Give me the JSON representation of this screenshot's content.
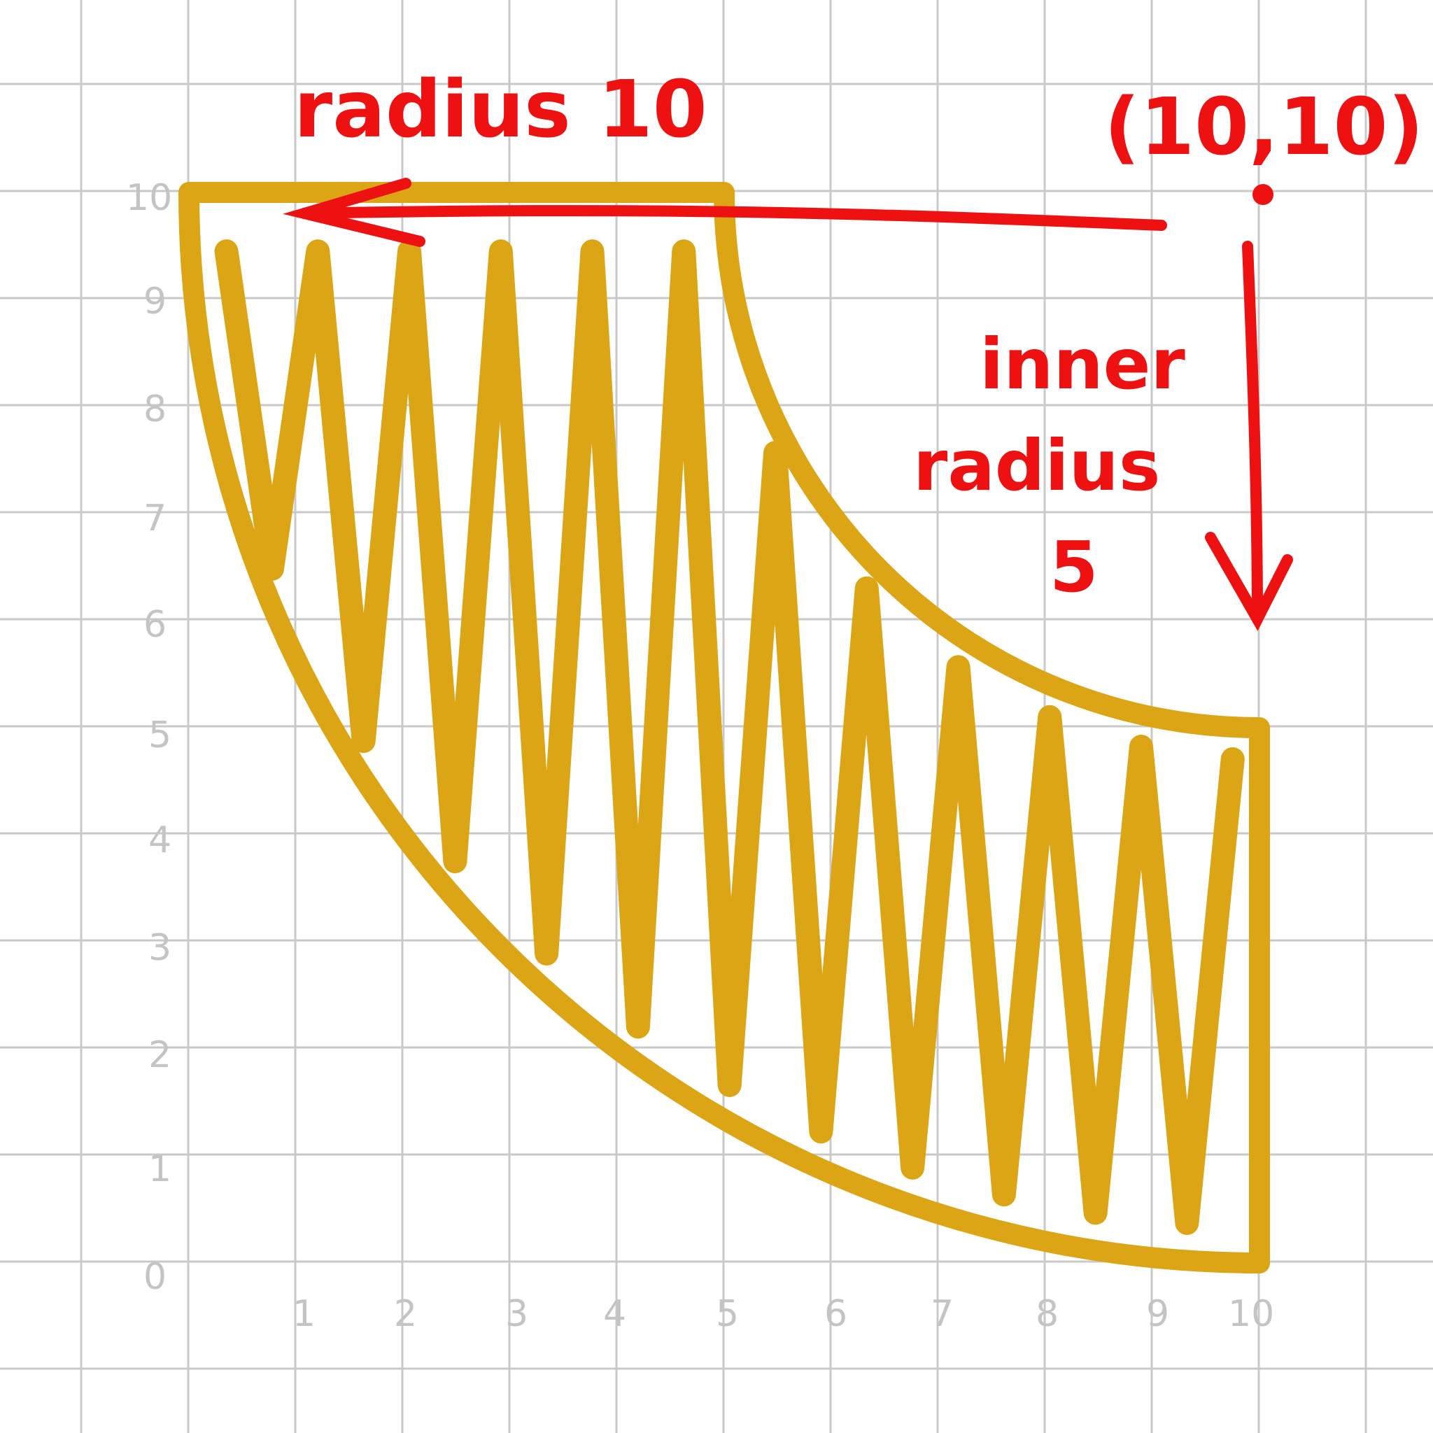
{
  "colors": {
    "grid": "#c9c9c9",
    "axis_numbers": "#c4c4c4",
    "fill": "#dba515",
    "annotation": "#ee1111"
  },
  "axes": {
    "x_ticks": [
      "1",
      "2",
      "3",
      "4",
      "5",
      "6",
      "7",
      "8",
      "9",
      "10"
    ],
    "y_ticks": [
      "0",
      "1",
      "2",
      "3",
      "4",
      "5",
      "6",
      "7",
      "8",
      "9",
      "10"
    ],
    "xlim": [
      0,
      10
    ],
    "ylim": [
      0,
      10
    ]
  },
  "annotations": {
    "outer_radius": "radius 10",
    "center_point": "(10,10)",
    "inner_line1": "inner",
    "inner_line2": "radius",
    "inner_line3": "5"
  },
  "shape": {
    "type": "annulus-quarter",
    "center": [
      10,
      10
    ],
    "outer_radius": 10,
    "inner_radius": 5
  }
}
